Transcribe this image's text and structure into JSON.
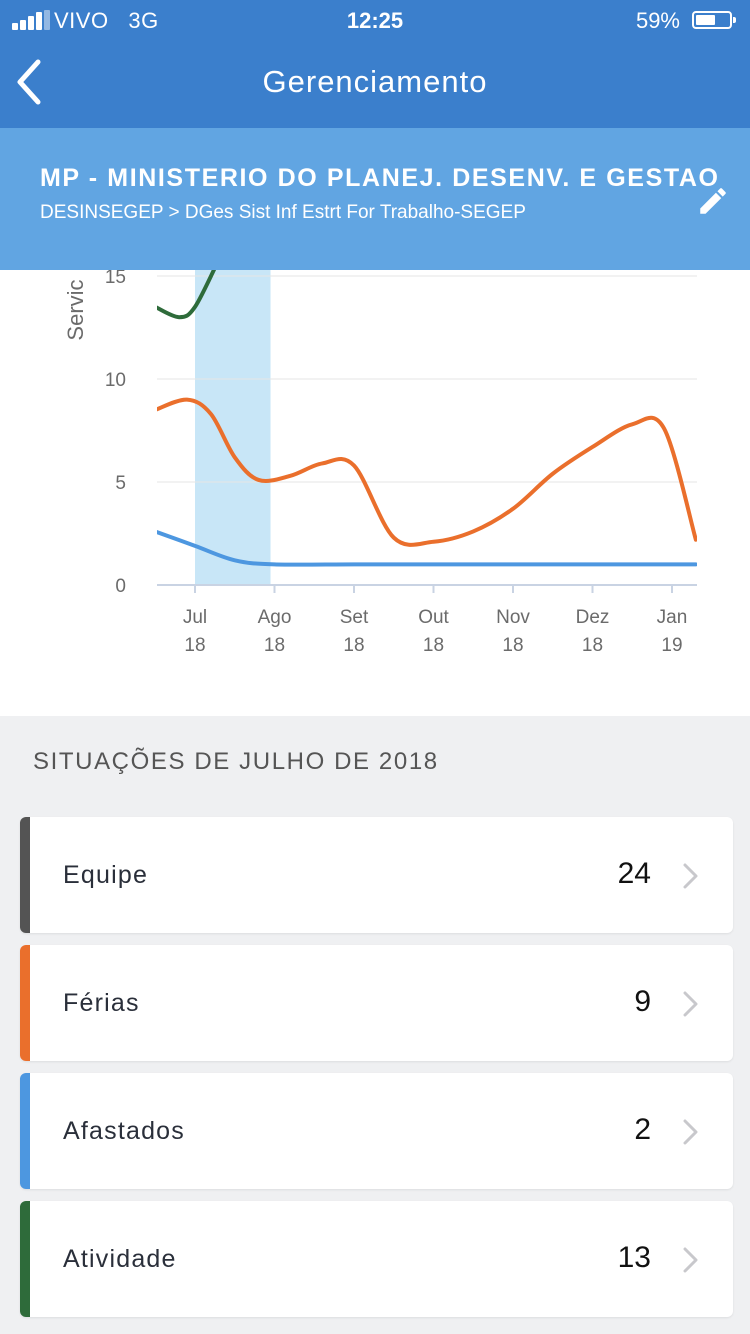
{
  "status_bar": {
    "carrier": "VIVO",
    "network": "3G",
    "time": "12:25",
    "battery": "59%",
    "battery_level": 0.59
  },
  "nav": {
    "title": "Gerenciamento",
    "back_icon": "chevron-left-icon"
  },
  "org": {
    "name": "MP - MINISTERIO DO PLANEJ. DESENV. E GESTAO",
    "path": "DESINSEGEP > DGes Sist Inf Estrt For Trabalho-SEGEP",
    "edit_icon": "pencil-icon"
  },
  "chart_data": {
    "type": "line",
    "ylabel": "Servic",
    "y_ticks": [
      "0",
      "5",
      "10",
      "15"
    ],
    "ylim": [
      0,
      15
    ],
    "x_ticks": [
      {
        "month": "Jul",
        "year": "18"
      },
      {
        "month": "Ago",
        "year": "18"
      },
      {
        "month": "Set",
        "year": "18"
      },
      {
        "month": "Out",
        "year": "18"
      },
      {
        "month": "Nov",
        "year": "18"
      },
      {
        "month": "Dez",
        "year": "18"
      },
      {
        "month": "Jan",
        "year": "19"
      }
    ],
    "highlight_month": "Jul",
    "highlight_color": "#c8e6f7",
    "grid": true,
    "series": [
      {
        "color": "#2e6b3a",
        "x": [
          -0.5,
          -0.2,
          0.0,
          0.3
        ],
        "values": [
          13.5,
          13.0,
          13.5,
          15.8
        ]
      },
      {
        "color": "#ea6f2c",
        "x": [
          -0.5,
          -0.1,
          0.2,
          0.5,
          0.8,
          1.2,
          1.6,
          2.0,
          2.5,
          3.0,
          3.5,
          4.0,
          4.5,
          5.0,
          5.5,
          5.9,
          6.3
        ],
        "values": [
          8.5,
          9.0,
          8.3,
          6.2,
          5.1,
          5.3,
          5.9,
          5.8,
          2.3,
          2.1,
          2.6,
          3.7,
          5.4,
          6.7,
          7.8,
          7.6,
          2.2
        ]
      },
      {
        "color": "#4d97e0",
        "x": [
          -0.5,
          0.0,
          0.5,
          1.0,
          2.0,
          3.0,
          4.0,
          5.0,
          6.3
        ],
        "values": [
          2.6,
          1.9,
          1.2,
          1.0,
          1.0,
          1.0,
          1.0,
          1.0,
          1.0
        ]
      }
    ]
  },
  "section": {
    "title": "SITUAÇÕES DE JULHO DE 2018",
    "items": [
      {
        "label": "Equipe",
        "count": "24",
        "color": "#545454"
      },
      {
        "label": "Férias",
        "count": "9",
        "color": "#ea6f2c"
      },
      {
        "label": "Afastados",
        "count": "2",
        "color": "#4d97e0"
      },
      {
        "label": "Atividade",
        "count": "13",
        "color": "#2e6b3a"
      }
    ]
  }
}
